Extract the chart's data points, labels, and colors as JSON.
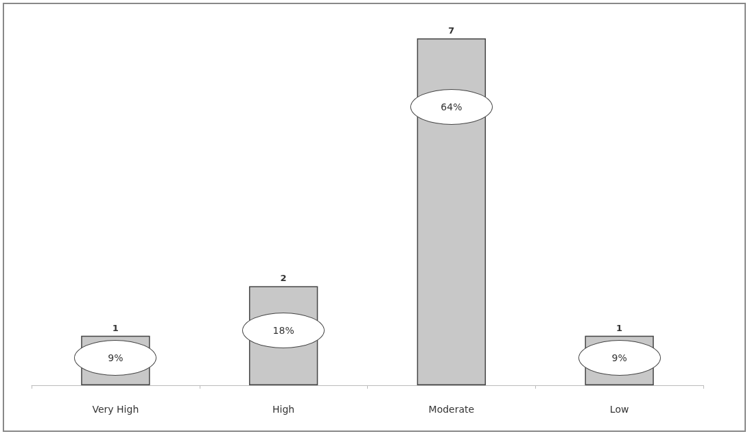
{
  "chart_data": {
    "type": "bar",
    "categories": [
      "Very High",
      "High",
      "Moderate",
      "Low"
    ],
    "values": [
      1,
      2,
      7,
      1
    ],
    "color": "#c8c8c8",
    "data_labels": true,
    "annotations": [
      "9%",
      "18%",
      "64%",
      "9%"
    ]
  }
}
